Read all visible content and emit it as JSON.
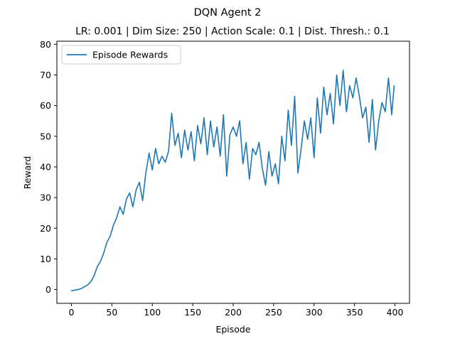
{
  "chart_data": {
    "type": "line",
    "title": "DQN Agent 2",
    "subtitle": "LR: 0.001 | Dim Size: 250 | Action Scale: 0.1 | Dist. Thresh.: 0.1",
    "xlabel": "Episode",
    "ylabel": "Reward",
    "xlim": [
      -18,
      418
    ],
    "ylim": [
      -4.5,
      81
    ],
    "xticks": [
      0,
      50,
      100,
      150,
      200,
      250,
      300,
      350,
      400
    ],
    "yticks": [
      0,
      10,
      20,
      30,
      40,
      50,
      60,
      70,
      80
    ],
    "grid": false,
    "legend_position": "top-left",
    "series": [
      {
        "name": "Episode Rewards",
        "color": "#1f77b4",
        "x": [
          0,
          4,
          8,
          12,
          16,
          20,
          24,
          28,
          32,
          36,
          40,
          44,
          48,
          52,
          56,
          60,
          64,
          68,
          72,
          76,
          80,
          84,
          88,
          92,
          96,
          100,
          104,
          108,
          112,
          116,
          120,
          124,
          128,
          132,
          136,
          140,
          144,
          148,
          152,
          156,
          160,
          164,
          168,
          172,
          176,
          180,
          184,
          188,
          192,
          196,
          200,
          204,
          208,
          212,
          216,
          220,
          224,
          228,
          232,
          236,
          240,
          244,
          248,
          252,
          256,
          260,
          264,
          268,
          272,
          276,
          280,
          284,
          288,
          292,
          296,
          300,
          304,
          308,
          312,
          316,
          320,
          324,
          328,
          332,
          336,
          340,
          344,
          348,
          352,
          356,
          360,
          364,
          368,
          372,
          376,
          380,
          384,
          388,
          392,
          396,
          399
        ],
        "y": [
          -0.4,
          -0.2,
          0.0,
          0.3,
          0.9,
          1.5,
          2.6,
          4.5,
          7.5,
          9.2,
          12.0,
          15.5,
          17.5,
          21.0,
          23.5,
          27.0,
          24.5,
          29.5,
          31.5,
          27.0,
          32.5,
          35.0,
          29.0,
          38.0,
          44.5,
          39.0,
          46.0,
          41.0,
          43.5,
          41.5,
          45.0,
          57.5,
          47.0,
          51.0,
          43.0,
          52.0,
          45.5,
          51.5,
          42.0,
          53.5,
          47.5,
          56.0,
          44.0,
          55.0,
          46.5,
          53.0,
          43.5,
          57.0,
          37.0,
          50.5,
          53.0,
          50.0,
          55.0,
          41.0,
          48.0,
          36.0,
          46.0,
          44.0,
          48.0,
          39.5,
          34.0,
          45.0,
          37.0,
          41.0,
          34.5,
          50.0,
          42.0,
          58.5,
          47.0,
          63.0,
          38.0,
          46.0,
          55.0,
          49.0,
          56.0,
          43.0,
          62.5,
          51.0,
          66.0,
          57.0,
          64.0,
          54.0,
          70.0,
          60.0,
          71.5,
          58.0,
          66.5,
          62.5,
          69.0,
          63.0,
          56.0,
          59.5,
          48.0,
          62.0,
          45.5,
          55.0,
          61.0,
          58.0,
          69.0,
          57.0,
          66.5
        ]
      }
    ]
  }
}
